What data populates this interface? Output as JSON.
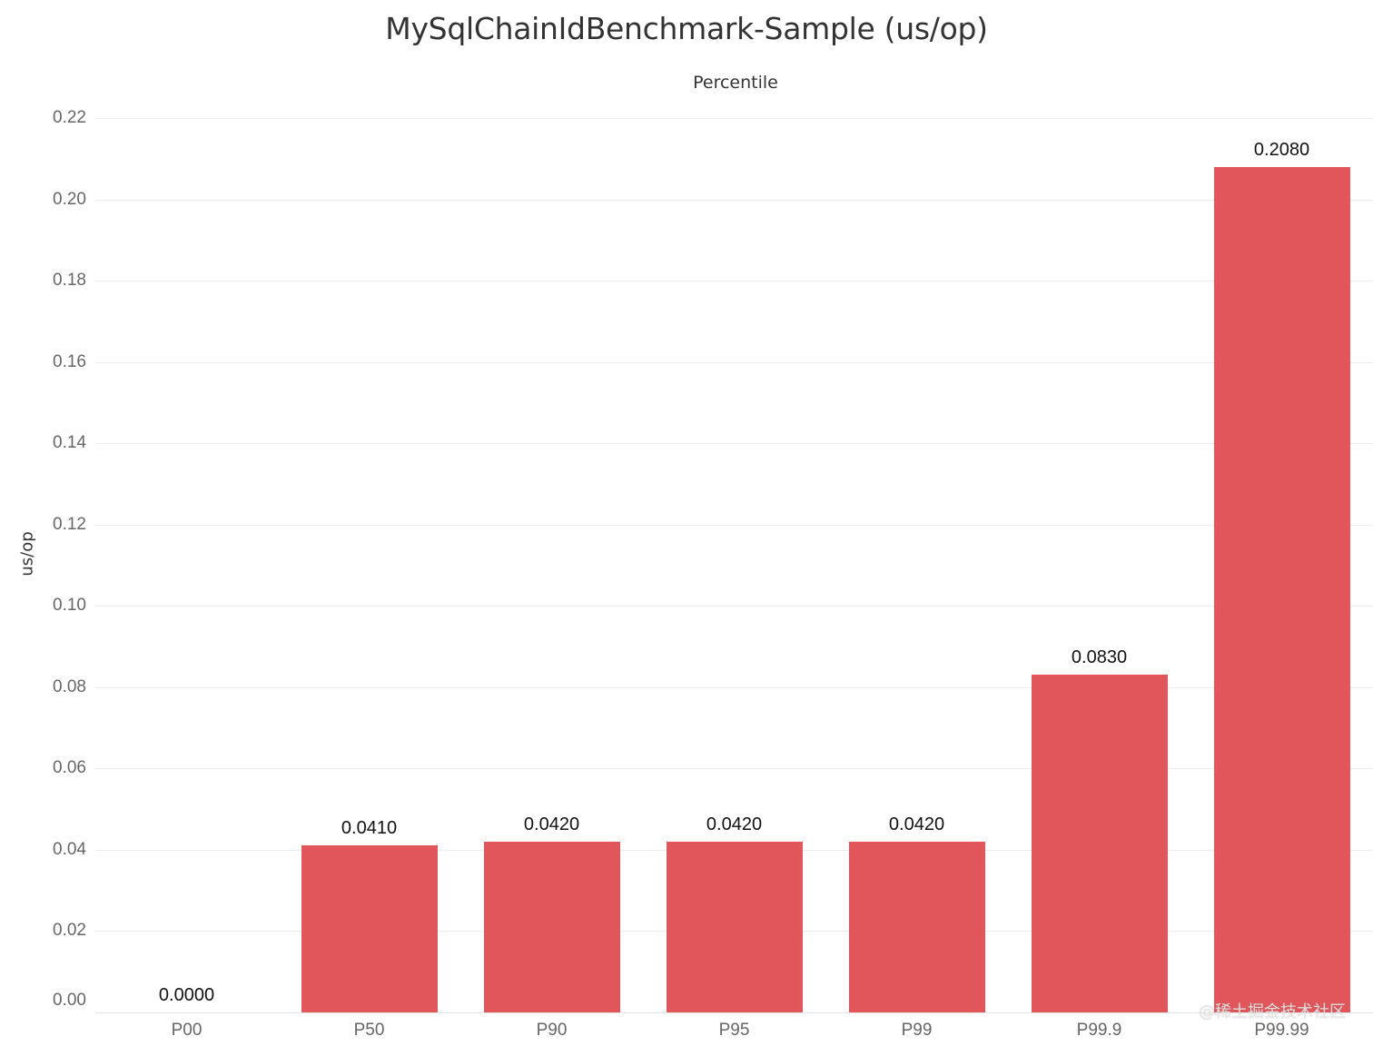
{
  "chart_data": {
    "type": "bar",
    "title": "MySqlChainIdBenchmark-Sample (us/op)",
    "column_header": "Percentile",
    "xlabel": "Percentile",
    "ylabel": "us/op",
    "categories": [
      "P00",
      "P50",
      "P90",
      "P95",
      "P99",
      "P99.9",
      "P99.99"
    ],
    "values": [
      0.0,
      0.041,
      0.042,
      0.042,
      0.042,
      0.083,
      0.208
    ],
    "value_labels": [
      "0.0000",
      "0.0410",
      "0.0420",
      "0.0420",
      "0.0420",
      "0.0830",
      "0.2080"
    ],
    "ylim": [
      0,
      0.22
    ],
    "yticks": [
      "0.00",
      "0.02",
      "0.04",
      "0.06",
      "0.08",
      "0.10",
      "0.12",
      "0.14",
      "0.16",
      "0.18",
      "0.20",
      "0.22"
    ],
    "grid": true,
    "legend": null,
    "bar_color": "#E0565B"
  },
  "watermark": "@稀土掘金技术社区"
}
